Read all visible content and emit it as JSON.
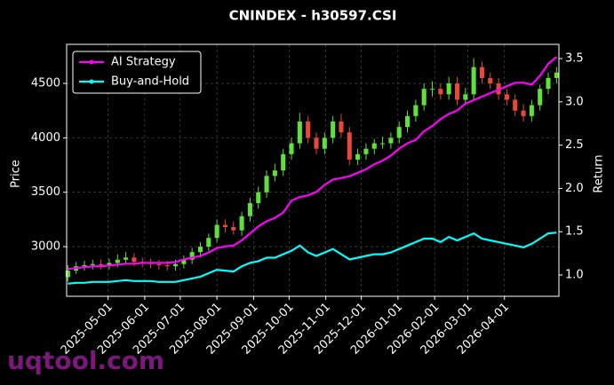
{
  "chart_data": {
    "type": "candlestick",
    "title": "CNINDEX - h30597.CSI",
    "ylabel": "Price",
    "y2label": "Return",
    "watermark": "uqtool.com",
    "x": [
      "2025-03-28",
      "2025-04-04",
      "2025-04-11",
      "2025-04-18",
      "2025-04-25",
      "2025-05-02",
      "2025-05-09",
      "2025-05-16",
      "2025-05-23",
      "2025-05-30",
      "2025-06-06",
      "2025-06-13",
      "2025-06-20",
      "2025-06-27",
      "2025-07-04",
      "2025-07-11",
      "2025-07-18",
      "2025-07-25",
      "2025-08-01",
      "2025-08-08",
      "2025-08-15",
      "2025-08-22",
      "2025-08-29",
      "2025-09-05",
      "2025-09-12",
      "2025-09-19",
      "2025-09-26",
      "2025-10-03",
      "2025-10-10",
      "2025-10-17",
      "2025-10-24",
      "2025-10-31",
      "2025-11-07",
      "2025-11-14",
      "2025-11-21",
      "2025-11-28",
      "2025-12-05",
      "2025-12-12",
      "2025-12-19",
      "2025-12-26",
      "2026-01-02",
      "2026-01-09",
      "2026-01-16",
      "2026-01-23",
      "2026-01-30",
      "2026-02-06",
      "2026-02-13",
      "2026-02-20",
      "2026-02-27",
      "2026-03-06",
      "2026-03-13",
      "2026-03-20",
      "2026-03-27",
      "2026-04-03",
      "2026-04-10",
      "2026-04-17",
      "2026-04-24",
      "2026-05-01",
      "2026-05-08",
      "2026-05-15"
    ],
    "open": [
      2720,
      2780,
      2820,
      2830,
      2840,
      2830,
      2850,
      2880,
      2900,
      2860,
      2850,
      2840,
      2830,
      2820,
      2840,
      2880,
      2950,
      3000,
      3080,
      3200,
      3180,
      3150,
      3280,
      3400,
      3500,
      3650,
      3700,
      3850,
      3950,
      4150,
      4000,
      3900,
      4000,
      4150,
      4050,
      3800,
      3850,
      3900,
      3950,
      3950,
      4000,
      4100,
      4200,
      4300,
      4450,
      4450,
      4400,
      4500,
      4350,
      4400,
      4650,
      4550,
      4500,
      4400,
      4350,
      4250,
      4200,
      4300,
      4450,
      4550
    ],
    "high": [
      2830,
      2860,
      2870,
      2880,
      2880,
      2890,
      2930,
      2950,
      2940,
      2900,
      2890,
      2880,
      2870,
      2880,
      2920,
      2990,
      3040,
      3120,
      3250,
      3250,
      3230,
      3320,
      3450,
      3550,
      3700,
      3760,
      3900,
      4000,
      4230,
      4200,
      4050,
      4050,
      4200,
      4220,
      4100,
      3900,
      3950,
      3990,
      4010,
      4050,
      4150,
      4250,
      4350,
      4500,
      4520,
      4500,
      4560,
      4560,
      4460,
      4730,
      4700,
      4600,
      4550,
      4450,
      4400,
      4310,
      4350,
      4490,
      4600,
      4650
    ],
    "low": [
      2680,
      2750,
      2780,
      2790,
      2790,
      2790,
      2810,
      2840,
      2820,
      2810,
      2800,
      2790,
      2780,
      2780,
      2800,
      2840,
      2900,
      2960,
      3040,
      3130,
      3110,
      3100,
      3230,
      3350,
      3450,
      3600,
      3650,
      3800,
      3900,
      3950,
      3850,
      3850,
      3950,
      4000,
      3750,
      3750,
      3800,
      3850,
      3900,
      3900,
      3950,
      4050,
      4150,
      4250,
      4380,
      4350,
      4350,
      4300,
      4300,
      4350,
      4500,
      4450,
      4350,
      4300,
      4200,
      4150,
      4150,
      4250,
      4400,
      4500
    ],
    "close": [
      2780,
      2820,
      2830,
      2840,
      2830,
      2850,
      2880,
      2900,
      2860,
      2850,
      2840,
      2830,
      2820,
      2840,
      2880,
      2950,
      3000,
      3080,
      3200,
      3180,
      3150,
      3280,
      3400,
      3500,
      3650,
      3700,
      3850,
      3950,
      4150,
      4000,
      3900,
      4000,
      4150,
      4050,
      3800,
      3850,
      3900,
      3950,
      3950,
      4000,
      4100,
      4200,
      4300,
      4450,
      4450,
      4400,
      4500,
      4350,
      4400,
      4650,
      4550,
      4500,
      4400,
      4350,
      4250,
      4200,
      4300,
      4450,
      4550,
      4600
    ],
    "up_color": "#5fe03a",
    "down_color": "#e8483a",
    "series": [
      {
        "name": "AI Strategy",
        "color": "#ff00ff",
        "axis": "y2",
        "values": [
          1.07,
          1.08,
          1.09,
          1.1,
          1.1,
          1.11,
          1.12,
          1.13,
          1.13,
          1.14,
          1.14,
          1.14,
          1.14,
          1.15,
          1.18,
          1.2,
          1.22,
          1.26,
          1.31,
          1.33,
          1.34,
          1.4,
          1.48,
          1.56,
          1.62,
          1.66,
          1.72,
          1.86,
          1.9,
          1.92,
          1.96,
          2.04,
          2.1,
          2.12,
          2.14,
          2.18,
          2.22,
          2.28,
          2.32,
          2.38,
          2.46,
          2.52,
          2.56,
          2.66,
          2.72,
          2.8,
          2.86,
          2.9,
          2.98,
          3.02,
          3.06,
          3.1,
          3.14,
          3.18,
          3.22,
          3.22,
          3.2,
          3.3,
          3.44,
          3.52
        ]
      },
      {
        "name": "Buy-and-Hold",
        "color": "#00ffff",
        "axis": "y2",
        "values": [
          0.9,
          0.91,
          0.91,
          0.92,
          0.92,
          0.92,
          0.93,
          0.94,
          0.93,
          0.93,
          0.93,
          0.92,
          0.92,
          0.92,
          0.94,
          0.96,
          0.98,
          1.02,
          1.06,
          1.05,
          1.04,
          1.1,
          1.14,
          1.16,
          1.2,
          1.2,
          1.24,
          1.28,
          1.34,
          1.26,
          1.22,
          1.26,
          1.3,
          1.24,
          1.18,
          1.2,
          1.22,
          1.24,
          1.24,
          1.26,
          1.3,
          1.34,
          1.38,
          1.42,
          1.42,
          1.38,
          1.44,
          1.4,
          1.44,
          1.48,
          1.42,
          1.4,
          1.38,
          1.36,
          1.34,
          1.32,
          1.36,
          1.42,
          1.48,
          1.49
        ]
      }
    ],
    "xlim": [
      "2025-03-27",
      "2026-05-17"
    ],
    "xticks": [
      "2025-05-01",
      "2025-06-01",
      "2025-07-01",
      "2025-08-01",
      "2025-09-01",
      "2025-10-01",
      "2025-11-01",
      "2025-12-01",
      "2026-01-01",
      "2026-02-01",
      "2026-03-01",
      "2026-04-01"
    ],
    "ylim": [
      2544,
      4859
    ],
    "yticks": [
      3000,
      3500,
      4000,
      4500
    ],
    "y2lim": [
      0.754,
      3.664
    ],
    "y2ticks": [
      {
        "value": 1,
        "label": "1.0"
      },
      1.5,
      {
        "value": 2,
        "label": "2.0"
      },
      2.5,
      {
        "value": 3,
        "label": "3.0"
      },
      3.5
    ],
    "grid": true,
    "legend": "upper left"
  }
}
